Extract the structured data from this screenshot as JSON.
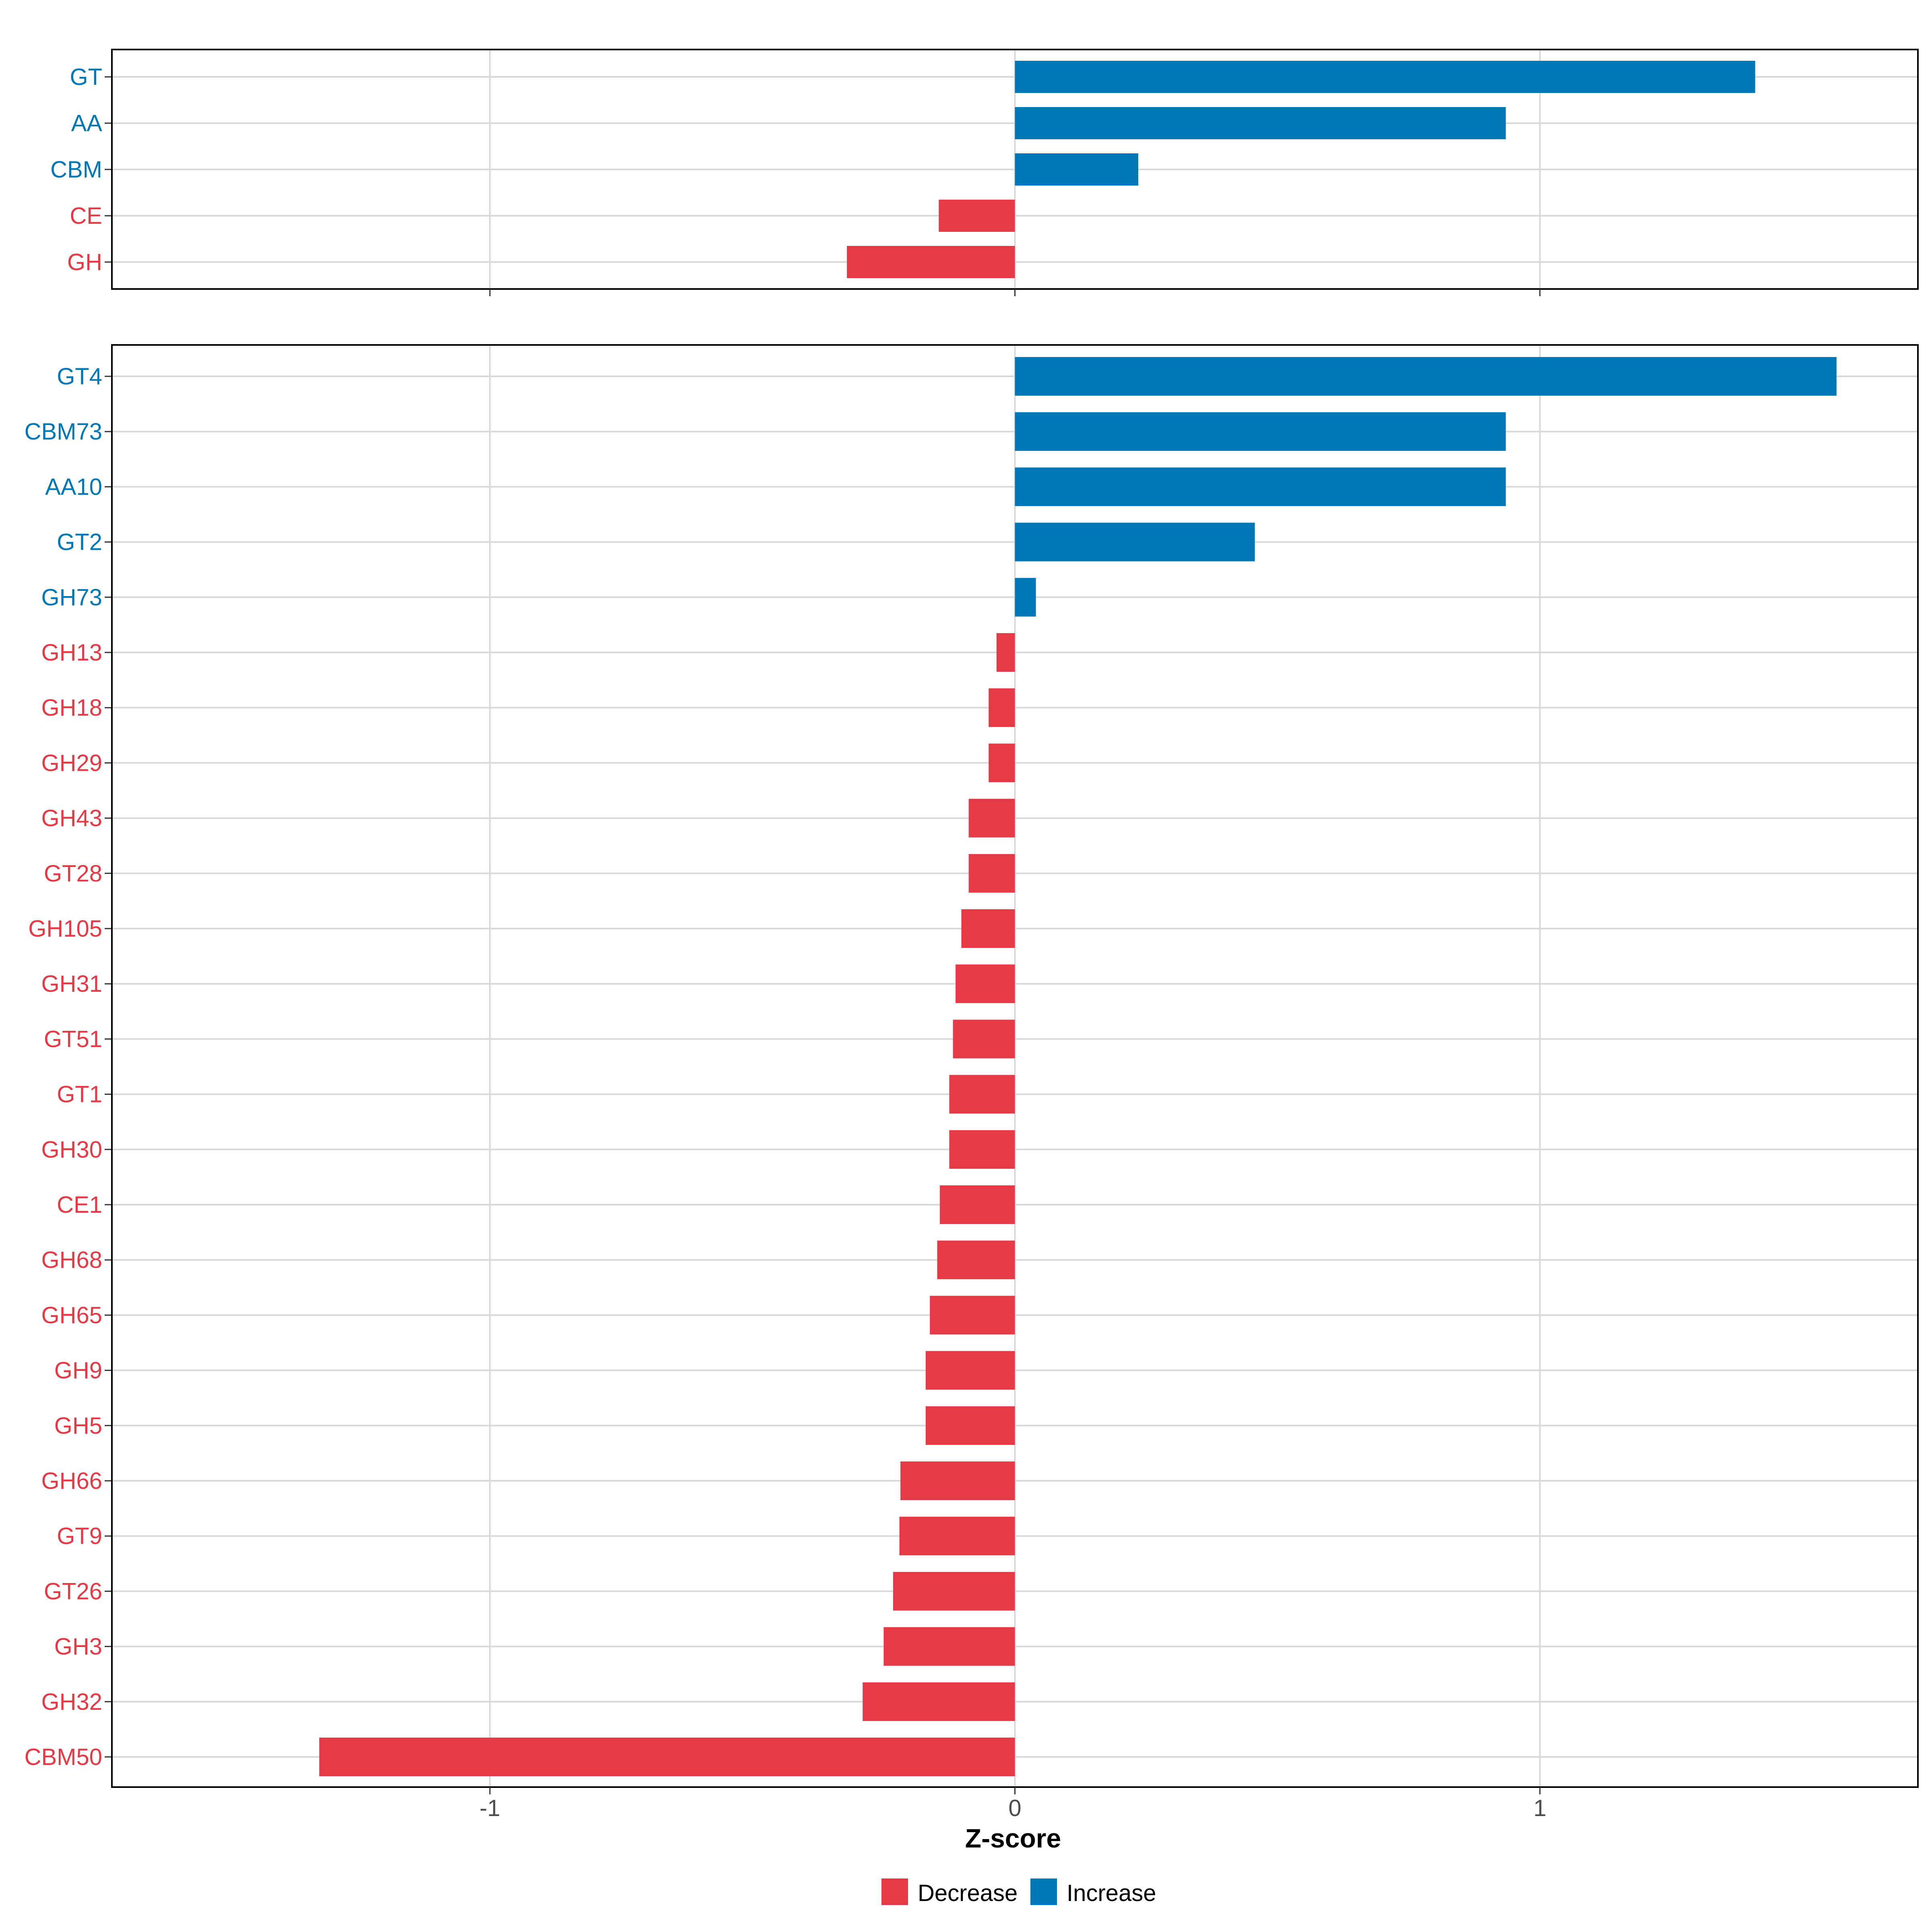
{
  "chart_data": [
    {
      "type": "bar",
      "orientation": "horizontal",
      "panel": "top",
      "categories": [
        "GT",
        "AA",
        "CBM",
        "CE",
        "GH"
      ],
      "values": [
        1.41,
        0.935,
        0.235,
        -0.145,
        -0.32
      ],
      "direction": [
        "Increase",
        "Increase",
        "Increase",
        "Decrease",
        "Decrease"
      ]
    },
    {
      "type": "bar",
      "orientation": "horizontal",
      "panel": "bottom",
      "categories": [
        "GT4",
        "CBM73",
        "AA10",
        "GT2",
        "GH73",
        "GH13",
        "GH18",
        "GH29",
        "GH43",
        "GT28",
        "GH105",
        "GH31",
        "GT51",
        "GT1",
        "GH30",
        "CE1",
        "GH68",
        "GH65",
        "GH9",
        "GH5",
        "GH66",
        "GT9",
        "GT26",
        "GH3",
        "GH32",
        "CBM50"
      ],
      "values": [
        1.565,
        0.935,
        0.935,
        0.457,
        0.04,
        -0.035,
        -0.05,
        -0.05,
        -0.088,
        -0.088,
        -0.102,
        -0.113,
        -0.118,
        -0.125,
        -0.125,
        -0.143,
        -0.148,
        -0.162,
        -0.17,
        -0.17,
        -0.218,
        -0.22,
        -0.232,
        -0.25,
        -0.29,
        -1.325
      ],
      "direction": [
        "Increase",
        "Increase",
        "Increase",
        "Increase",
        "Increase",
        "Decrease",
        "Decrease",
        "Decrease",
        "Decrease",
        "Decrease",
        "Decrease",
        "Decrease",
        "Decrease",
        "Decrease",
        "Decrease",
        "Decrease",
        "Decrease",
        "Decrease",
        "Decrease",
        "Decrease",
        "Decrease",
        "Decrease",
        "Decrease",
        "Decrease",
        "Decrease",
        "Decrease"
      ]
    }
  ],
  "axis": {
    "xlabel": "Z-score",
    "xlim": [
      -1.72,
      1.72
    ],
    "ticks": [
      -1,
      0,
      1
    ],
    "tick_labels": [
      "-1",
      "0",
      "1"
    ]
  },
  "legend": {
    "placement": "bottom",
    "items": [
      {
        "label": "Decrease",
        "color": "#e63946"
      },
      {
        "label": "Increase",
        "color": "#0077b6"
      }
    ]
  },
  "colors": {
    "Increase": "#0077b6",
    "Decrease": "#e63946",
    "grid": "#d9d9d9",
    "axis": "#000000"
  }
}
